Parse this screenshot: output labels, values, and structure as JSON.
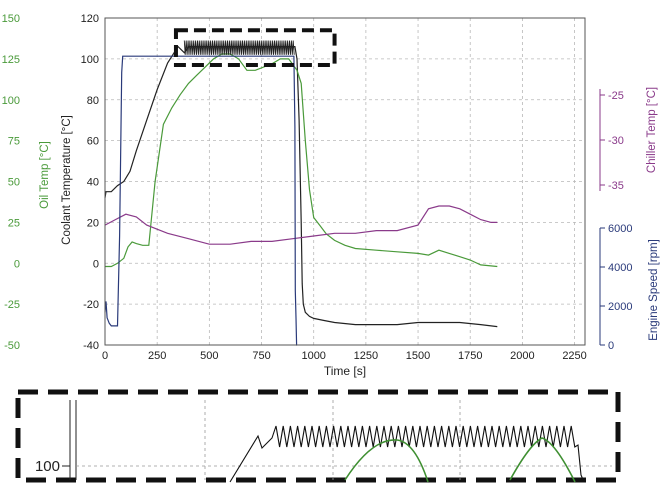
{
  "chart_data": {
    "type": "line",
    "xlabel": "Time [s]",
    "x_ticks": [
      0,
      250,
      500,
      750,
      1000,
      1250,
      1500,
      1750,
      2000,
      2250
    ],
    "xlim": [
      0,
      2300
    ],
    "grid": true,
    "axes": {
      "coolant": {
        "label": "Coolant  Temperature [°C]",
        "ticks": [
          -40,
          -20,
          0,
          20,
          40,
          60,
          80,
          100,
          120
        ],
        "ylim": [
          -40,
          120
        ],
        "side": "left",
        "color": "#222222"
      },
      "oil": {
        "label": "Oil Temp [°C]",
        "ticks": [
          -50,
          -25,
          0,
          25,
          50,
          75,
          100,
          125,
          150
        ],
        "ylim": [
          -50,
          150
        ],
        "side": "left-outer",
        "color": "#4a9a3a"
      },
      "chiller": {
        "label": "Chiller Temp [°C]",
        "ticks": [
          -35,
          -30,
          -25
        ],
        "ylim": [
          -35,
          -23
        ],
        "side": "right",
        "color": "#8a3a8a"
      },
      "engine": {
        "label": "Engine Speed [rpm]",
        "ticks": [
          0,
          2000,
          4000,
          6000
        ],
        "ylim": [
          0,
          6000
        ],
        "side": "right",
        "color": "#2a3a7a"
      }
    },
    "series": [
      {
        "axis": "coolant",
        "color": "#222222",
        "x": [
          0,
          5,
          30,
          60,
          90,
          120,
          150,
          200,
          250,
          300,
          350,
          380,
          400,
          440,
          480,
          520,
          560,
          600,
          640,
          680,
          720,
          760,
          800,
          840,
          880,
          910,
          920,
          930,
          940,
          945,
          950,
          960,
          980,
          1000,
          1050,
          1100,
          1200,
          1300,
          1400,
          1500,
          1600,
          1700,
          1800,
          1880
        ],
        "y": [
          32,
          35,
          35,
          38,
          40,
          45,
          55,
          70,
          85,
          98,
          106,
          103,
          106,
          106,
          106,
          106,
          106,
          106,
          106,
          106,
          106,
          106,
          106,
          106,
          106,
          106,
          100,
          70,
          20,
          -10,
          -20,
          -24,
          -26,
          -27,
          -28,
          -29,
          -30,
          -30,
          -30,
          -29,
          -29,
          -29,
          -30,
          -31
        ]
      },
      {
        "axis": "oil",
        "color": "#4a9a3a",
        "x": [
          0,
          30,
          60,
          90,
          110,
          130,
          150,
          180,
          210,
          240,
          280,
          320,
          360,
          400,
          440,
          480,
          520,
          560,
          600,
          640,
          680,
          720,
          760,
          800,
          840,
          880,
          920,
          940,
          960,
          980,
          1000,
          1030,
          1060,
          1100,
          1150,
          1200,
          1300,
          1400,
          1500,
          1550,
          1600,
          1650,
          1700,
          1750,
          1800,
          1880
        ],
        "y": [
          -2,
          -2,
          0,
          3,
          10,
          13,
          12,
          11,
          11,
          50,
          85,
          95,
          103,
          110,
          115,
          120,
          125,
          128,
          128,
          125,
          118,
          118,
          120,
          122,
          125,
          125,
          118,
          110,
          75,
          45,
          28,
          23,
          18,
          14,
          11,
          9,
          8,
          7,
          6,
          5,
          8,
          6,
          4,
          2,
          -1,
          -2
        ]
      },
      {
        "axis": "chiller",
        "color": "#8a3a8a",
        "x": [
          0,
          50,
          100,
          150,
          200,
          300,
          400,
          500,
          600,
          700,
          800,
          900,
          1000,
          1100,
          1200,
          1300,
          1400,
          1500,
          1550,
          1600,
          1650,
          1700,
          1750,
          1800,
          1850,
          1880
        ],
        "y": [
          -30.6,
          -30.4,
          -30.2,
          -30.3,
          -30.6,
          -30.9,
          -31.1,
          -31.3,
          -31.3,
          -31.2,
          -31.2,
          -31.1,
          -31.0,
          -30.9,
          -30.9,
          -30.8,
          -30.8,
          -30.6,
          -30.0,
          -29.9,
          -29.9,
          -30.0,
          -30.2,
          -30.4,
          -30.5,
          -30.5
        ]
      },
      {
        "axis": "engine",
        "color": "#2a3a7a",
        "x": [
          0,
          5,
          10,
          20,
          30,
          60,
          70,
          80,
          85,
          90,
          200,
          400,
          600,
          800,
          900,
          905,
          910,
          912,
          915,
          918,
          920
        ],
        "y": [
          600,
          800,
          500,
          400,
          350,
          350,
          2000,
          5000,
          5300,
          5300,
          5300,
          5300,
          5300,
          5300,
          5300,
          5300,
          4000,
          1000,
          500,
          0,
          0
        ]
      }
    ],
    "inset": {
      "tick_label": "100",
      "note": "zoomed view of dashed region"
    }
  }
}
